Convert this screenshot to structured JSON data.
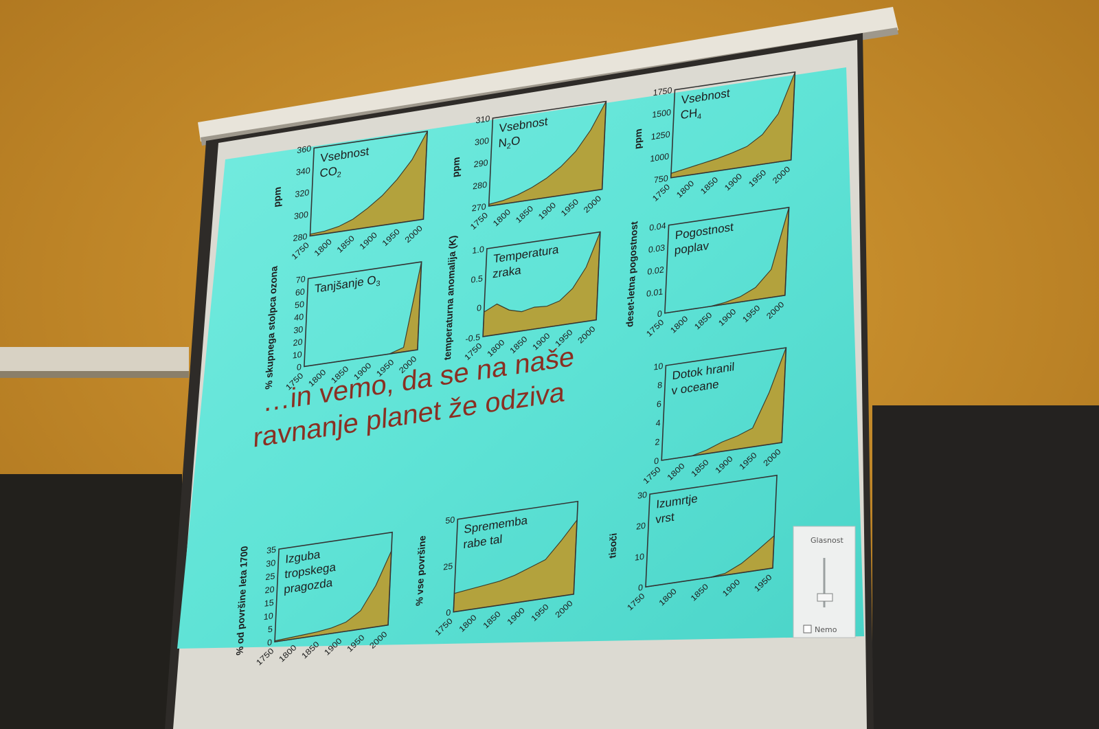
{
  "slide": {
    "headline_line1": "…in vemo, da se na naše",
    "headline_line2": "ravnanje planet že odziva"
  },
  "panels": [
    {
      "id": "co2",
      "title1": "Vsebnost",
      "title2": "CO",
      "title2_sub": "2",
      "ylabel": "ppm",
      "yticks": [
        "360",
        "340",
        "320",
        "300",
        "280"
      ],
      "xticks": [
        "1750",
        "1800",
        "1850",
        "1900",
        "1950",
        "2000"
      ],
      "series_y": [
        0.02,
        0.03,
        0.06,
        0.12,
        0.22,
        0.34,
        0.5,
        0.7,
        1.0
      ]
    },
    {
      "id": "n2o",
      "title1": "Vsebnost",
      "title2": "N",
      "title2_sub": "2",
      "title2_tail": "O",
      "ylabel": "ppm",
      "yticks": [
        "310",
        "300",
        "290",
        "280",
        "270"
      ],
      "xticks": [
        "1750",
        "1800",
        "1850",
        "1900",
        "1950",
        "2000"
      ],
      "series_y": [
        0.02,
        0.04,
        0.08,
        0.14,
        0.22,
        0.33,
        0.48,
        0.7,
        1.0
      ]
    },
    {
      "id": "ch4",
      "title1": "Vsebnost",
      "title2": "CH",
      "title2_sub": "4",
      "ylabel": "ppm",
      "yticks": [
        "1750",
        "1500",
        "1250",
        "1000",
        "750"
      ],
      "xticks": [
        "1750",
        "1800",
        "1850",
        "1900",
        "1950",
        "2000"
      ],
      "series_y": [
        0.05,
        0.08,
        0.11,
        0.14,
        0.18,
        0.23,
        0.34,
        0.55,
        1.0
      ]
    },
    {
      "id": "o3",
      "title1": "Tanjšanje O",
      "title1_sub": "3",
      "ylabel": "% skupnega stolpca ozona",
      "yticks": [
        "70",
        "60",
        "50",
        "40",
        "30",
        "20",
        "10",
        "0"
      ],
      "xticks": [
        "1750",
        "1800",
        "1850",
        "1900",
        "1950",
        "2000"
      ],
      "series_y": [
        0,
        0,
        0,
        0,
        0,
        0,
        0,
        0.05,
        1.0
      ]
    },
    {
      "id": "temp",
      "title1": "Temperatura",
      "title2": "zraka",
      "ylabel": "temperaturna anomalija (K)",
      "yticks": [
        "1.0",
        "0.5",
        "0",
        "-0.5"
      ],
      "xticks": [
        "1750",
        "1800",
        "1850",
        "1900",
        "1950",
        "2000"
      ],
      "series_y": [
        0.28,
        0.35,
        0.26,
        0.22,
        0.25,
        0.24,
        0.28,
        0.4,
        0.62,
        1.0
      ]
    },
    {
      "id": "flood",
      "title1": "Pogostnost",
      "title2": "poplav",
      "ylabel": "deset-letna pogostnost",
      "yticks": [
        "0.04",
        "0.03",
        "0.02",
        "0.01",
        "0"
      ],
      "xticks": [
        "1750",
        "1800",
        "1850",
        "1900",
        "1950",
        "2000"
      ],
      "series_y": [
        0,
        0,
        0,
        0,
        0.02,
        0.06,
        0.14,
        0.32,
        1.0
      ]
    },
    {
      "id": "nutrient",
      "title1": "Dotok hranil",
      "title2": "v oceane",
      "ylabel": "",
      "yticks": [
        "10",
        "8",
        "6",
        "4",
        "2",
        "0"
      ],
      "xticks": [
        "1750",
        "1800",
        "1850",
        "1900",
        "1950",
        "2000"
      ],
      "series_y": [
        0,
        0,
        0,
        0.04,
        0.1,
        0.14,
        0.2,
        0.55,
        1.0
      ]
    },
    {
      "id": "forest",
      "title1": "Izguba",
      "title2": "tropskega",
      "title3": "pragozda",
      "ylabel": "% od površine leta 1700",
      "yticks": [
        "35",
        "30",
        "25",
        "20",
        "15",
        "10",
        "5",
        "0"
      ],
      "xticks": [
        "1750",
        "1800",
        "1850",
        "1900",
        "1950",
        "2000"
      ],
      "series_y": [
        0.01,
        0.02,
        0.03,
        0.04,
        0.06,
        0.1,
        0.2,
        0.45,
        0.8
      ]
    },
    {
      "id": "land",
      "title1": "Sprememba",
      "title2": "rabe tal",
      "ylabel": "% vse površine",
      "yticks": [
        "50",
        "25",
        "0"
      ],
      "xticks": [
        "1750",
        "1800",
        "1850",
        "1900",
        "1950",
        "2000"
      ],
      "series_y": [
        0.2,
        0.22,
        0.24,
        0.26,
        0.3,
        0.36,
        0.42,
        0.6,
        0.8
      ]
    },
    {
      "id": "species",
      "title1": "Izumrtje",
      "title2": "vrst",
      "ylabel": "tisoči",
      "yticks": [
        "30",
        "20",
        "10",
        "0"
      ],
      "xticks": [
        "1750",
        "1800",
        "1850",
        "1900",
        "1950"
      ],
      "series_y": [
        0,
        0,
        0,
        0,
        0,
        0.02,
        0.1,
        0.22,
        0.35
      ]
    }
  ],
  "volume_popup": {
    "title": "Glasnost",
    "mute_label": "Nemo"
  },
  "colors": {
    "slide_bg": "#62e3d8",
    "area_fill": "#b3a23d",
    "headline": "#8a2f22"
  }
}
